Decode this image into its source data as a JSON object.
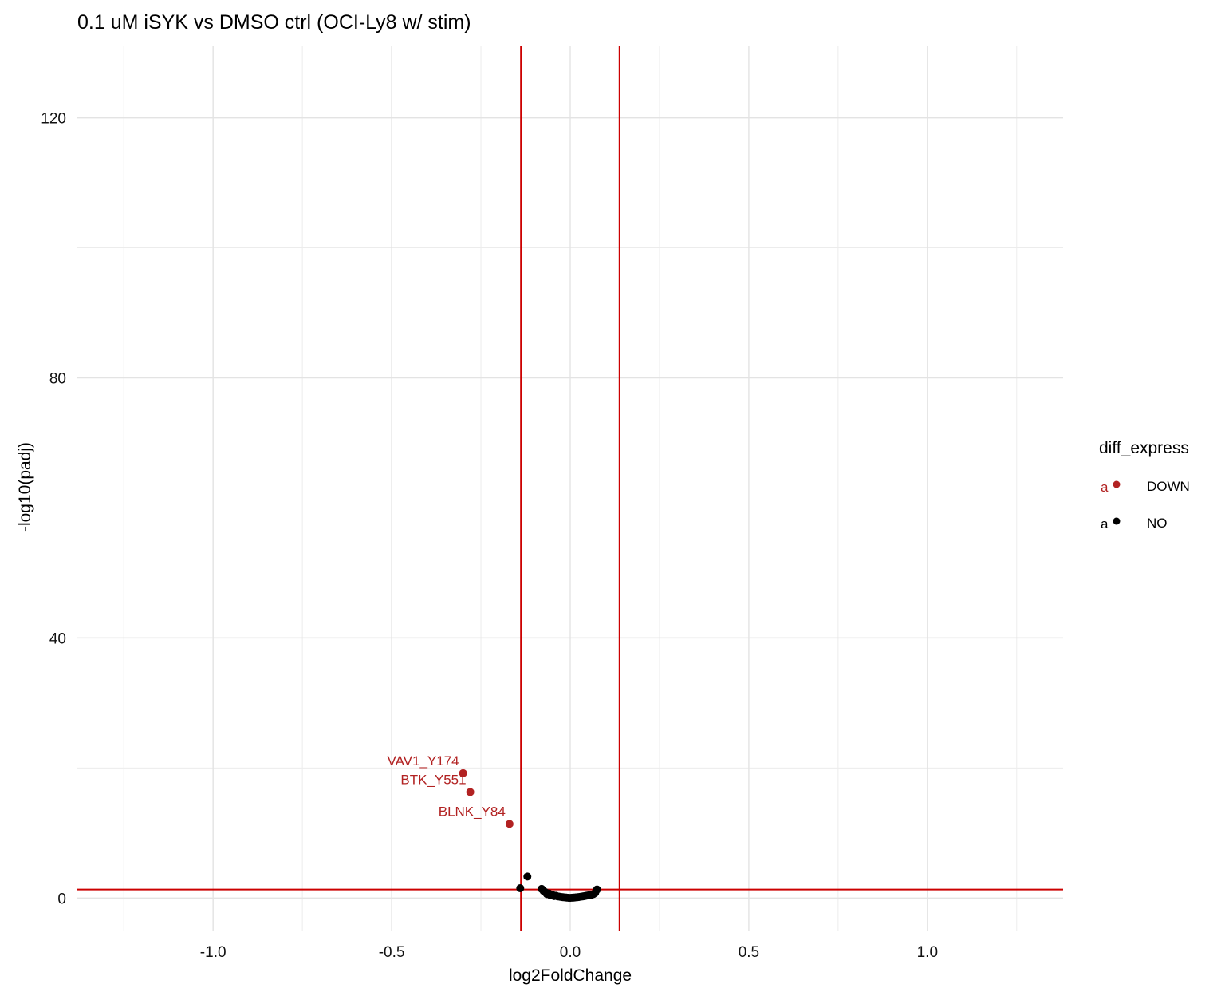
{
  "chart_data": {
    "type": "scatter",
    "title": "0.1 uM iSYK vs DMSO ctrl (OCI-Ly8 w/ stim)",
    "xlabel": "log2FoldChange",
    "ylabel": "-log10(padj)",
    "xlim": [
      -1.38,
      1.38
    ],
    "ylim": [
      -5,
      131
    ],
    "x_ticks": [
      -1.0,
      -0.5,
      0.0,
      0.5,
      1.0
    ],
    "x_tick_labels": [
      "-1.0",
      "-0.5",
      "0.0",
      "0.5",
      "1.0"
    ],
    "y_ticks": [
      0,
      40,
      80,
      120
    ],
    "y_tick_labels": [
      "0",
      "40",
      "80",
      "120"
    ],
    "grid": true,
    "vlines": [
      -0.138,
      0.138
    ],
    "hline": 1.3,
    "reference_line_color": "#cc0000",
    "legend": {
      "title": "diff_express",
      "position": "right",
      "key_glyph": "a",
      "items": [
        {
          "label": "DOWN",
          "color": "#b22222"
        },
        {
          "label": "NO",
          "color": "#000000"
        }
      ]
    },
    "series": [
      {
        "name": "DOWN",
        "color": "#b22222",
        "points": [
          {
            "x": -0.3,
            "y": 19.2,
            "label": "VAV1_Y174"
          },
          {
            "x": -0.28,
            "y": 16.3,
            "label": "BTK_Y551"
          },
          {
            "x": -0.17,
            "y": 11.4,
            "label": "BLNK_Y84"
          }
        ]
      },
      {
        "name": "NO",
        "color": "#000000",
        "points": [
          {
            "x": -0.14,
            "y": 1.5
          },
          {
            "x": -0.12,
            "y": 3.3
          },
          {
            "x": -0.08,
            "y": 1.4
          },
          {
            "x": -0.075,
            "y": 1.1
          },
          {
            "x": -0.07,
            "y": 0.9
          },
          {
            "x": -0.065,
            "y": 0.6
          },
          {
            "x": -0.06,
            "y": 0.7
          },
          {
            "x": -0.055,
            "y": 0.4
          },
          {
            "x": -0.05,
            "y": 0.5
          },
          {
            "x": -0.045,
            "y": 0.3
          },
          {
            "x": -0.04,
            "y": 0.35
          },
          {
            "x": -0.035,
            "y": 0.25
          },
          {
            "x": -0.03,
            "y": 0.2
          },
          {
            "x": -0.025,
            "y": 0.15
          },
          {
            "x": -0.02,
            "y": 0.12
          },
          {
            "x": -0.015,
            "y": 0.1
          },
          {
            "x": -0.01,
            "y": 0.06
          },
          {
            "x": -0.005,
            "y": 0.04
          },
          {
            "x": 0.0,
            "y": 0.02
          },
          {
            "x": 0.005,
            "y": 0.05
          },
          {
            "x": 0.01,
            "y": 0.07
          },
          {
            "x": 0.015,
            "y": 0.1
          },
          {
            "x": 0.02,
            "y": 0.13
          },
          {
            "x": 0.025,
            "y": 0.16
          },
          {
            "x": 0.03,
            "y": 0.2
          },
          {
            "x": 0.035,
            "y": 0.25
          },
          {
            "x": 0.04,
            "y": 0.3
          },
          {
            "x": 0.045,
            "y": 0.35
          },
          {
            "x": 0.05,
            "y": 0.4
          },
          {
            "x": 0.055,
            "y": 0.45
          },
          {
            "x": 0.06,
            "y": 0.5
          },
          {
            "x": 0.065,
            "y": 0.6
          },
          {
            "x": 0.07,
            "y": 0.8
          },
          {
            "x": 0.075,
            "y": 1.3
          }
        ]
      }
    ]
  }
}
